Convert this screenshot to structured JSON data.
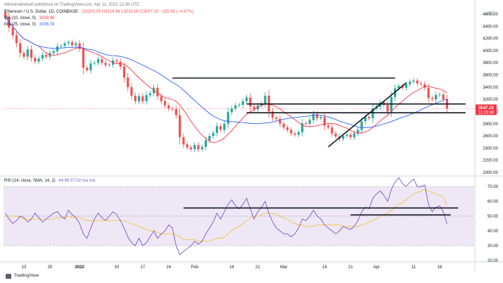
{
  "header": {
    "published": "elkmondandsell published on TradingView.com, Apr 11, 2022 12:36 UTC",
    "symbol": "Ethereum / U.S. Dollar, 1D, COINBASE",
    "ohlc": "O3205.05 H3214.88 L3010.00 C3047.10 −155.95 (−4.87%)",
    "ma10_label": "MA (10, close, 0)",
    "ma10_value": "3299.36",
    "ma25_label": "MA (25, close, 0)",
    "ma25_value": "3206.78",
    "currency": "USD",
    "price_badge": "3047.10",
    "price_badge_time": "11:23:48",
    "rsi_label": "RSI (14, close, SMA, 14, 2)",
    "rsi_values": "44.69  57.02  n/a  n/a",
    "brand": "TradingView"
  },
  "colors": {
    "up": "#26a69a",
    "down": "#ef5350",
    "ma10": "#f23645",
    "ma25": "#2962ff",
    "rsi": "#7e57c2",
    "rsi_ma": "#f5c542",
    "rsi_band": "#ede7f6",
    "badge": "#f23645"
  },
  "chart_data": [
    {
      "type": "candlestick",
      "title": "Ethereum / U.S. Dollar, 1D, COINBASE",
      "ylim": [
        2000,
        4600
      ],
      "y_ticks": [
        "4600.00",
        "4400.00",
        "4200.00",
        "4000.00",
        "3800.00",
        "3600.00",
        "3400.00",
        "3200.00",
        "3000.00",
        "2800.00",
        "2600.00",
        "2400.00",
        "2200.00",
        "2000.00"
      ],
      "x_ticks": [
        "13",
        "20",
        "2022",
        "10",
        "17",
        "24",
        "Feb",
        "14",
        "21",
        "Mar",
        "14",
        "21",
        "Apr",
        "11",
        "18"
      ],
      "close": [
        4550,
        4380,
        4250,
        4120,
        3960,
        3900,
        4020,
        3880,
        3820,
        3870,
        3930,
        3900,
        3960,
        3990,
        4070,
        4080,
        4120,
        4140,
        4090,
        4120,
        4030,
        3720,
        3680,
        3790,
        3800,
        3860,
        3800,
        3760,
        3770,
        3840,
        3820,
        3740,
        3560,
        3400,
        3260,
        3170,
        3250,
        3170,
        3270,
        3300,
        3390,
        3250,
        3170,
        3100,
        3050,
        3040,
        2940,
        2580,
        2460,
        2410,
        2380,
        2450,
        2380,
        2420,
        2530,
        2600,
        2650,
        2760,
        2700,
        2800,
        2990,
        3050,
        3100,
        3110,
        3170,
        3230,
        3080,
        3040,
        3100,
        3130,
        3260,
        3000,
        2900,
        2880,
        2800,
        2740,
        2700,
        2640,
        2620,
        2660,
        2810,
        2800,
        2860,
        2960,
        2890,
        2910,
        2770,
        2740,
        2640,
        2590,
        2550,
        2600,
        2620,
        2580,
        2640,
        2700,
        2840,
        2910,
        2890,
        3050,
        3080,
        3150,
        3110,
        3000,
        3240,
        3380,
        3420,
        3390,
        3450,
        3490,
        3510,
        3460,
        3450,
        3390,
        3220,
        3200,
        3270,
        3280,
        3200,
        3047
      ],
      "moving_averages": [
        {
          "name": "MA (10, close, 0)",
          "value": "3299.36"
        },
        {
          "name": "MA (25, close, 0)",
          "value": "3206.78"
        }
      ],
      "current_price": 3047.1,
      "drawn_lines": [
        {
          "kind": "horizontal",
          "from": [
            45,
            3550
          ],
          "to": [
            105,
            3550
          ]
        },
        {
          "kind": "horizontal",
          "from": [
            65,
            3125
          ],
          "to": [
            124,
            3125
          ]
        },
        {
          "kind": "horizontal",
          "from": [
            65,
            2980
          ],
          "to": [
            124,
            2980
          ]
        },
        {
          "kind": "trend",
          "from": [
            87,
            2420
          ],
          "to": [
            108,
            3470
          ]
        }
      ]
    },
    {
      "type": "line",
      "title": "RSI (14, close, SMA, 14, 2)",
      "ylim": [
        20,
        70
      ],
      "y_ticks": [
        "70.00",
        "60.00",
        "50.00",
        "40.00",
        "30.00",
        "20.00"
      ],
      "band": [
        30,
        70
      ],
      "rsi": [
        52,
        48,
        45,
        47,
        50,
        49,
        46,
        48,
        52,
        49,
        46,
        48,
        50,
        52,
        53,
        50,
        48,
        54,
        51,
        49,
        45,
        38,
        35,
        42,
        48,
        52,
        49,
        47,
        50,
        53,
        51,
        47,
        42,
        36,
        32,
        30,
        35,
        30,
        32,
        36,
        40,
        35,
        38,
        40,
        44,
        42,
        30,
        24,
        26,
        28,
        30,
        33,
        31,
        33,
        38,
        42,
        46,
        52,
        48,
        53,
        58,
        61,
        57,
        55,
        58,
        62,
        55,
        48,
        53,
        56,
        60,
        52,
        46,
        42,
        40,
        38,
        38,
        36,
        38,
        42,
        48,
        47,
        50,
        54,
        50,
        48,
        44,
        42,
        40,
        38,
        40,
        43,
        42,
        41,
        43,
        47,
        53,
        56,
        55,
        62,
        65,
        67,
        64,
        60,
        68,
        73,
        76,
        72,
        70,
        73,
        75,
        70,
        70,
        71,
        58,
        53,
        56,
        57,
        53,
        44.69
      ],
      "rsi_ma": [
        50,
        50,
        50,
        50,
        49,
        48,
        48,
        48,
        48,
        48,
        48,
        48,
        48,
        48,
        49,
        49,
        49,
        50,
        49,
        49,
        49,
        48,
        47,
        47,
        47,
        47,
        47,
        47,
        47,
        47,
        47,
        47,
        47,
        46,
        45,
        44,
        43,
        42,
        41,
        40,
        40,
        39,
        38,
        38,
        38,
        38,
        37,
        36,
        34,
        34,
        34,
        34,
        33,
        33,
        33,
        33,
        34,
        35,
        35,
        36,
        38,
        40,
        42,
        43,
        45,
        47,
        49,
        50,
        50,
        51,
        52,
        52,
        52,
        51,
        50,
        49,
        48,
        46,
        45,
        44,
        44,
        43,
        43,
        43,
        44,
        44,
        44,
        44,
        44,
        44,
        44,
        43,
        43,
        43,
        43,
        43,
        44,
        45,
        46,
        47,
        48,
        50,
        51,
        52,
        54,
        56,
        58,
        59,
        61,
        63,
        65,
        66,
        67,
        68,
        67,
        66,
        65,
        64,
        63,
        57.02
      ],
      "drawn_lines": [
        {
          "kind": "horizontal",
          "from": [
            48,
            55.5
          ],
          "to": [
            122,
            55.5
          ]
        },
        {
          "kind": "horizontal",
          "from": [
            93,
            50.8
          ],
          "to": [
            120,
            50.8
          ]
        }
      ]
    }
  ]
}
